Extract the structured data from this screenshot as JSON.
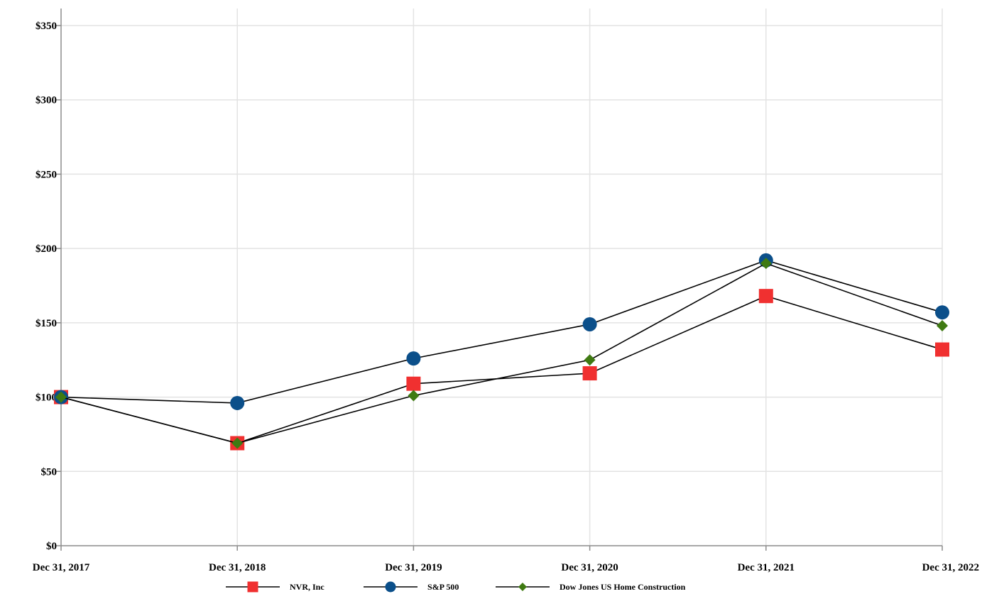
{
  "chart_data": {
    "type": "line",
    "title": "",
    "xlabel": "",
    "ylabel": "",
    "categories": [
      "Dec 31, 2017",
      "Dec 31, 2018",
      "Dec 31, 2019",
      "Dec 31, 2020",
      "Dec 31, 2021",
      "Dec 31, 2022"
    ],
    "ylim": [
      0,
      350
    ],
    "yticks": [
      0,
      50,
      100,
      150,
      200,
      250,
      300,
      350
    ],
    "ytick_labels": [
      "$0",
      "$50",
      "$100",
      "$150",
      "$200",
      "$250",
      "$300",
      "$350"
    ],
    "grid": true,
    "legend_position": "bottom",
    "series": [
      {
        "name": "NVR, Inc",
        "marker": "square",
        "color": "#f03030",
        "values": [
          100,
          69,
          109,
          116,
          168,
          132
        ]
      },
      {
        "name": "S&P 500",
        "marker": "circle",
        "color": "#0b4f8a",
        "values": [
          100,
          96,
          126,
          149,
          192,
          157
        ]
      },
      {
        "name": "Dow Jones US Home Construction",
        "marker": "diamond",
        "color": "#3f7a12",
        "values": [
          100,
          69,
          101,
          125,
          190,
          148
        ]
      }
    ]
  }
}
